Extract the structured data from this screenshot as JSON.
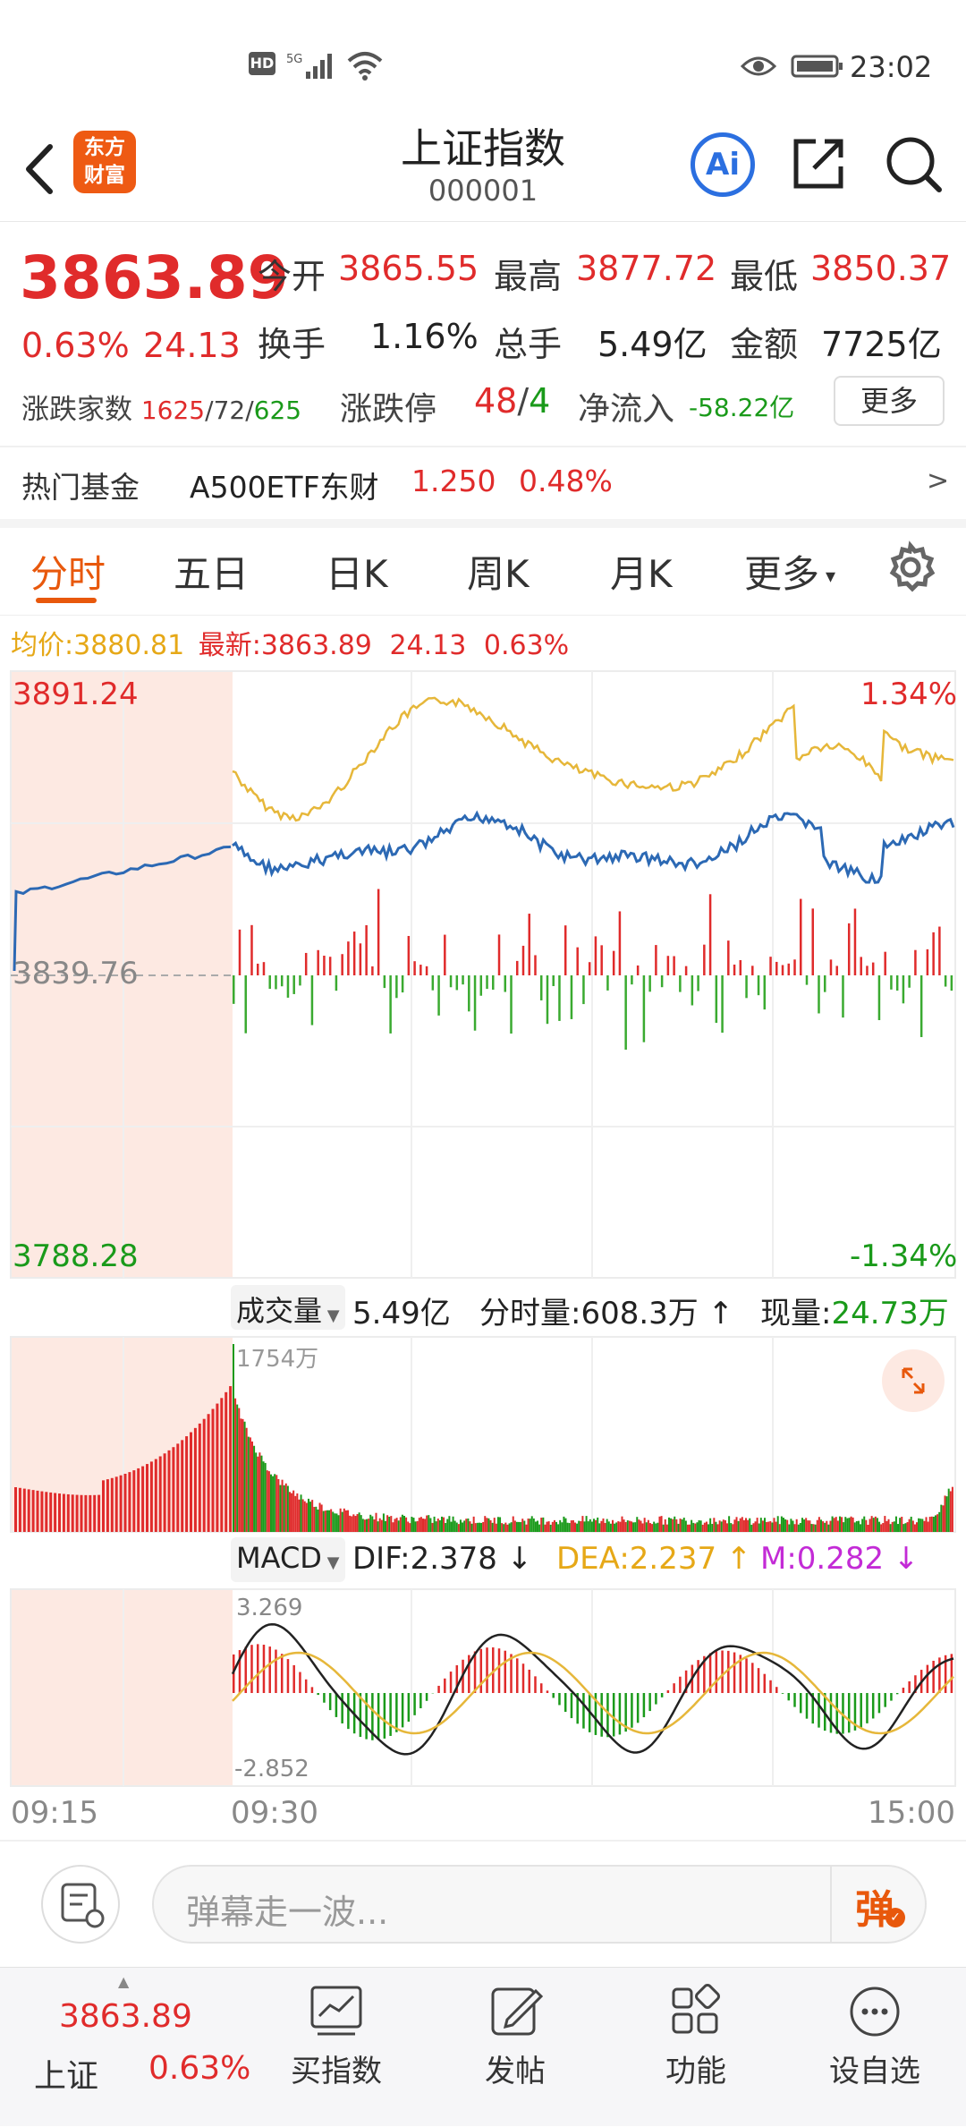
{
  "status": {
    "time": "23:02",
    "hd": "HD",
    "net": "5G"
  },
  "nav": {
    "title": "上证指数",
    "code": "000001",
    "logo_line1": "东方",
    "logo_line2": "财富",
    "ai_label": "Ai"
  },
  "quote": {
    "price": "3863.89",
    "pct": "0.63%",
    "change": "24.13",
    "fields": [
      {
        "label": "今开",
        "value": "3865.55"
      },
      {
        "label": "最高",
        "value": "3877.72"
      },
      {
        "label": "最低",
        "value": "3850.37"
      },
      {
        "label": "换手",
        "value": "1.16%"
      },
      {
        "label": "总手",
        "value": "5.49亿"
      },
      {
        "label": "金额",
        "value": "7725亿"
      }
    ],
    "breadth_label": "涨跌家数",
    "breadth_up": "1625",
    "breadth_flat": "72",
    "breadth_down": "625",
    "limit_label": "涨跌停",
    "limit_up": "48",
    "limit_down": "4",
    "inflow_label": "净流入",
    "inflow_value": "-58.22亿",
    "more_button": "更多"
  },
  "fund": {
    "label": "热门基金",
    "name": "A500ETF东财",
    "price": "1.250",
    "pct": "0.48%",
    "arrow": ">"
  },
  "tabs": {
    "items": [
      "分时",
      "五日",
      "日K",
      "周K",
      "月K"
    ],
    "more": "更多",
    "active": 0
  },
  "legend": {
    "avg_label": "均价:",
    "avg_value": "3880.81",
    "latest_label": "最新:",
    "latest_value": "3863.89",
    "change": "24.13",
    "pct": "0.63%"
  },
  "price_chart": {
    "top_left": "3891.24",
    "top_right": "1.34%",
    "mid_left": "3839.76",
    "bot_left": "3788.28",
    "bot_right": "-1.34%"
  },
  "volume_bar": {
    "selector": "成交量",
    "total": "5.49亿",
    "per_min_label": "分时量:",
    "per_min_value": "608.3万",
    "now_label": "现量:",
    "now_value": "24.73万",
    "peak": "1754万"
  },
  "macd_bar": {
    "selector": "MACD",
    "dif": "DIF:2.378",
    "dea": "DEA:2.237",
    "m": "M:0.282",
    "top": "3.269",
    "bot": "-2.852"
  },
  "time_axis": [
    "09:15",
    "09:30",
    "15:00"
  ],
  "comment": {
    "placeholder": "弹幕走一波...",
    "danmu": "弹"
  },
  "bottom": {
    "index_price": "3863.89",
    "index_name": "上证",
    "index_pct": "0.63%",
    "items": [
      {
        "label": "买指数",
        "icon": "chart-icon"
      },
      {
        "label": "发帖",
        "icon": "edit-icon"
      },
      {
        "label": "功能",
        "icon": "grid-icon"
      },
      {
        "label": "设自选",
        "icon": "more-icon"
      }
    ]
  },
  "colors": {
    "up": "#e02b2b",
    "down": "#1a9a1a",
    "avg": "#e6b73a",
    "price": "#2c69b4",
    "accent": "#e8580c"
  }
}
